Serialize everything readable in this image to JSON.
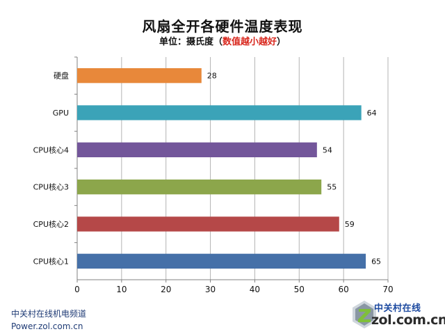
{
  "header": {
    "title": "风扇全开各硬件温度表现",
    "subtitle_prefix": "单位：摄氏度（",
    "subtitle_highlight": "数值越小越好",
    "subtitle_suffix": "）",
    "highlight_color": "#d8261c"
  },
  "footer": {
    "line1": "中关村在线机电频道",
    "line2": "Power.zol.com.cn"
  },
  "logo": {
    "cn": "中关村在线",
    "en": "zol.com.cn"
  },
  "chart_data": {
    "type": "bar",
    "orientation": "horizontal",
    "categories": [
      "硬盘",
      "GPU",
      "CPU核心4",
      "CPU核心3",
      "CPU核心2",
      "CPU核心1"
    ],
    "values": [
      28,
      64,
      54,
      55,
      59,
      65
    ],
    "colors": [
      "#e8883a",
      "#3ba3b8",
      "#73569a",
      "#8ca64b",
      "#b54848",
      "#4570a8"
    ],
    "xlim": [
      0,
      70
    ],
    "xticks": [
      0,
      10,
      20,
      30,
      40,
      50,
      60,
      70
    ],
    "grid": true,
    "legend": false,
    "data_labels": true
  }
}
